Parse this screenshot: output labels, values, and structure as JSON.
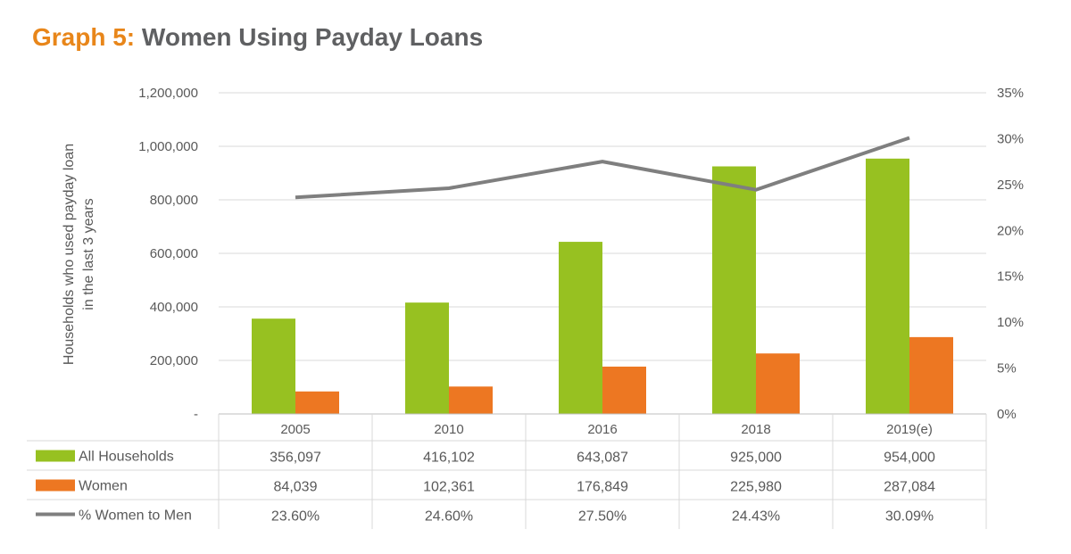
{
  "title": {
    "prefix": "Graph 5:",
    "main": "Women Using Payday Loans"
  },
  "chart_data": {
    "type": "bar",
    "categories": [
      "2005",
      "2010",
      "2016",
      "2018",
      "2019(e)"
    ],
    "series": [
      {
        "name": "All Households",
        "type": "bar",
        "axis": "left",
        "color": "#97c121",
        "values": [
          356097,
          416102,
          643087,
          925000,
          954000
        ],
        "labels": [
          "356,097",
          "416,102",
          "643,087",
          "925,000",
          "954,000"
        ]
      },
      {
        "name": "Women",
        "type": "bar",
        "axis": "left",
        "color": "#ed7722",
        "values": [
          84039,
          102361,
          176849,
          225980,
          287084
        ],
        "labels": [
          "84,039",
          "102,361",
          "176,849",
          "225,980",
          "287,084"
        ]
      },
      {
        "name": "% Women to Men",
        "type": "line",
        "axis": "right",
        "color": "#7f7f7f",
        "values": [
          23.6,
          24.6,
          27.5,
          24.43,
          30.09
        ],
        "labels": [
          "23.60%",
          "24.60%",
          "27.50%",
          "24.43%",
          "30.09%"
        ]
      }
    ],
    "ylabel_lines": [
      "Households who used payday loan",
      "in the last 3 years"
    ],
    "ylim": [
      0,
      1200000
    ],
    "y_ticks": [
      0,
      200000,
      400000,
      600000,
      800000,
      1000000,
      1200000
    ],
    "y_tick_labels": [
      "-",
      "200,000",
      "400,000",
      "600,000",
      "800,000",
      "1,000,000",
      "1,200,000"
    ],
    "y2lim": [
      0,
      35
    ],
    "y2_ticks": [
      0,
      5,
      10,
      15,
      20,
      25,
      30,
      35
    ],
    "y2_tick_labels": [
      "0%",
      "5%",
      "10%",
      "15%",
      "20%",
      "25%",
      "30%",
      "35%"
    ],
    "grid": true,
    "legend": "data-table-below"
  }
}
